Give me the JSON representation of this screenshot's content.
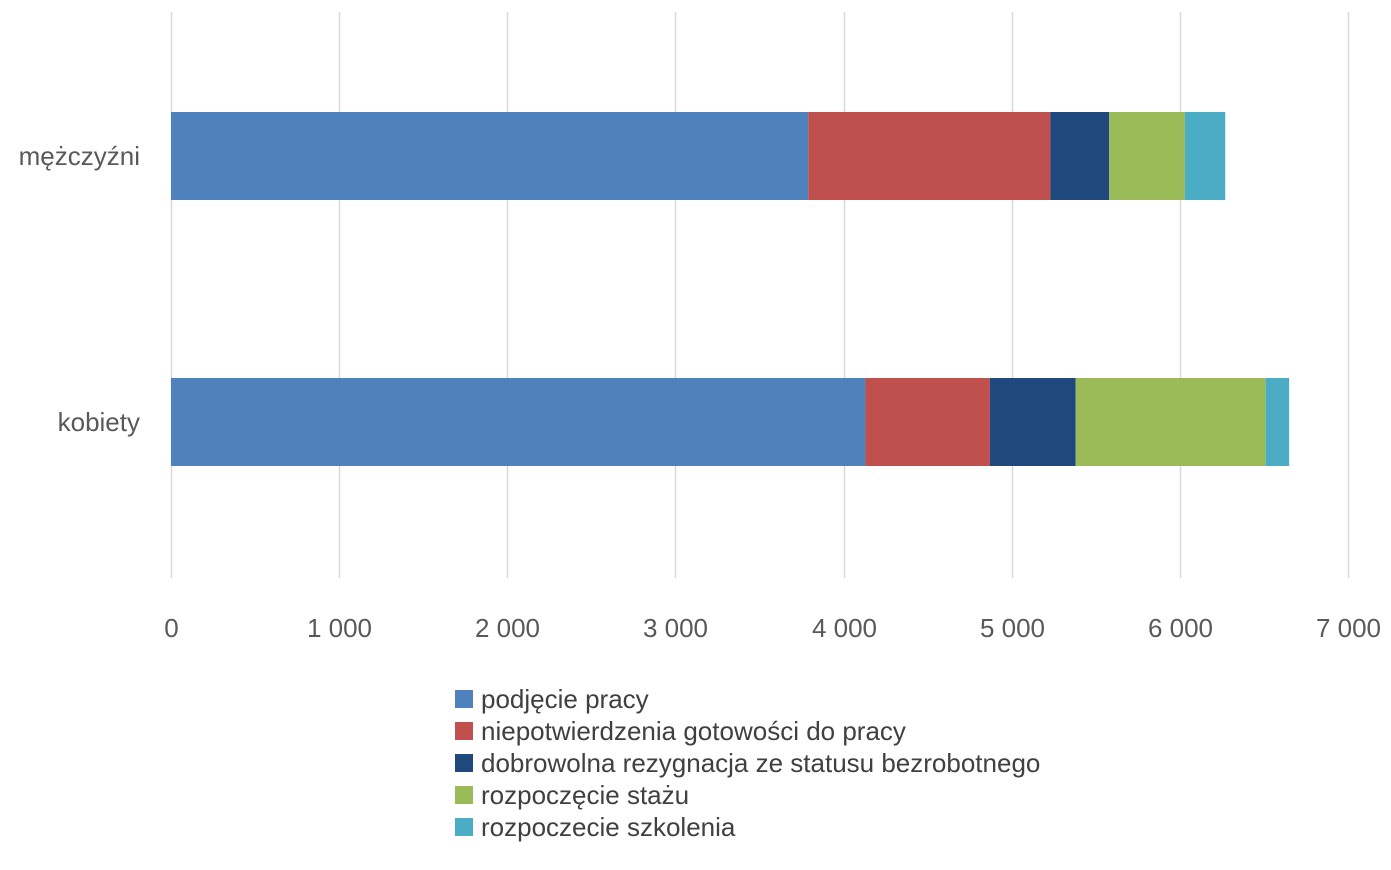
{
  "chart_data": {
    "type": "bar",
    "orientation": "horizontal",
    "stacked": true,
    "title": "",
    "xlabel": "",
    "ylabel": "",
    "categories": [
      "mężczyźni",
      "kobiety"
    ],
    "series": [
      {
        "name": "podjęcie pracy",
        "color": "#4f81bd",
        "values": [
          3790,
          4130
        ]
      },
      {
        "name": "niepotwierdzenia gotowości do pracy",
        "color": "#c0504d",
        "values": [
          1440,
          740
        ]
      },
      {
        "name": "dobrowolna rezygnacja ze statusu bezrobotnego",
        "color": "#1f497d",
        "values": [
          350,
          510
        ]
      },
      {
        "name": "rozpoczęcie stażu",
        "color": "#9bbb59",
        "values": [
          450,
          1130
        ]
      },
      {
        "name": "rozpoczecie szkolenia",
        "color": "#4bacc6",
        "values": [
          240,
          140
        ]
      }
    ],
    "xlim": [
      0,
      7000
    ],
    "xticks": [
      0,
      1000,
      2000,
      3000,
      4000,
      5000,
      6000,
      7000
    ],
    "xtick_labels": [
      "0",
      "1 000",
      "2 000",
      "3 000",
      "4 000",
      "5 000",
      "6 000",
      "7 000"
    ],
    "grid": true,
    "legend_position": "bottom"
  }
}
